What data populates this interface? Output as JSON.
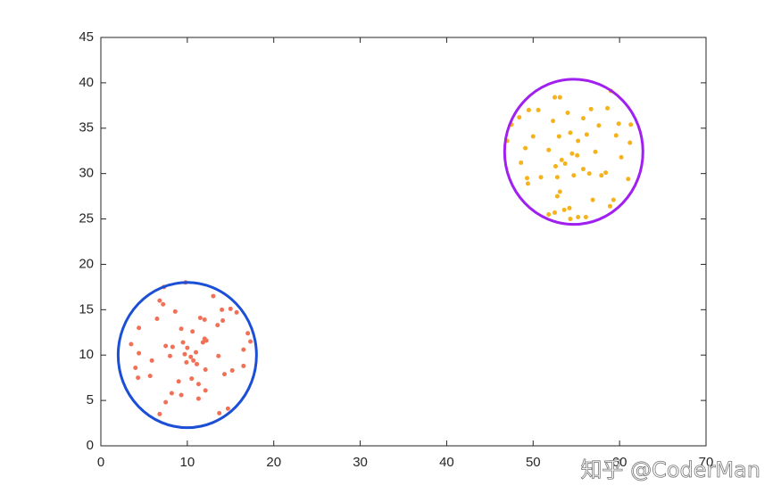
{
  "chart_data": {
    "type": "scatter",
    "annotation": "知乎 @CoderMan",
    "xlim": [
      0,
      70
    ],
    "xticks": [
      0,
      10,
      20,
      30,
      40,
      50,
      60,
      70
    ],
    "ylim": [
      0,
      45
    ],
    "yticks": [
      0,
      5,
      10,
      15,
      20,
      25,
      30,
      35,
      40,
      45
    ],
    "series": [
      {
        "color": "#f07158",
        "x": [
          9.8,
          7.3,
          13,
          6.8,
          7.2,
          14,
          15,
          15.7,
          8.6,
          6.5,
          11.5,
          12,
          14.1,
          13.5,
          4.4,
          9.3,
          10.6,
          17,
          12,
          11.8,
          12.2,
          3.5,
          7.5,
          8.3,
          9.5,
          10,
          16.5,
          17.3,
          4.4,
          9.7,
          10.4,
          11,
          8,
          5.9,
          13.6,
          12.1,
          4,
          15.2,
          16.5,
          4.3,
          5.7,
          14.3,
          11.3,
          9,
          12.1,
          8.2,
          9.3,
          11.3,
          7.5,
          14.7,
          13.7,
          6.8,
          10.5,
          9.9,
          11.1,
          10.7
        ],
        "y": [
          18,
          17.5,
          16.5,
          16,
          15.6,
          15,
          15.1,
          14.7,
          14.8,
          14,
          14.1,
          13.9,
          13.8,
          13.3,
          13,
          12.9,
          12.6,
          12.4,
          11.8,
          11.4,
          11.6,
          11.2,
          11,
          10.9,
          11.4,
          10.8,
          10.6,
          11.5,
          10.2,
          10.1,
          9.8,
          10.3,
          9.9,
          9.4,
          9.9,
          8.4,
          8.6,
          8.3,
          8.8,
          7.5,
          7.7,
          7.9,
          6.8,
          7.1,
          6.1,
          5.8,
          5.6,
          5.2,
          4.8,
          4.1,
          3.6,
          3.5,
          7.4,
          9.2,
          9.0,
          9.4
        ]
      },
      {
        "color": "#f5b21a",
        "x": [
          59,
          52.5,
          53.1,
          49.5,
          50.6,
          56.7,
          58.6,
          48.4,
          54,
          55.8,
          61.3,
          47.5,
          52.3,
          59.9,
          57.6,
          59.6,
          56.2,
          50,
          47,
          53,
          54.3,
          55.2,
          49.1,
          51.8,
          54.5,
          55.1,
          53.3,
          57.2,
          61.2,
          60.2,
          52.6,
          53.7,
          55.8,
          48.6,
          56.5,
          57.9,
          58.4,
          52.8,
          50.9,
          49.3,
          54.7,
          61,
          49.4,
          53.1,
          52.8,
          56.9,
          59.3,
          54.2,
          53.6,
          52.5,
          51.8,
          55.2,
          54.3,
          56.1,
          58.9
        ],
        "y": [
          39.1,
          38.4,
          38.4,
          37,
          37,
          37.1,
          37.2,
          36.2,
          36.7,
          36.1,
          35.4,
          35.4,
          35.8,
          35.5,
          35.3,
          34.2,
          34.3,
          34.1,
          33.6,
          34.1,
          34.5,
          33.6,
          32.8,
          32.6,
          32.2,
          32,
          31.5,
          32.4,
          33.4,
          31.8,
          30.8,
          31.1,
          30.5,
          31.2,
          30,
          29.8,
          30.1,
          29.6,
          29.6,
          29.5,
          29.8,
          29.4,
          28.9,
          28,
          27.5,
          27.1,
          27.1,
          26.2,
          26,
          25.7,
          25.5,
          25.2,
          25,
          25.2,
          26.4
        ]
      }
    ],
    "circles": [
      {
        "cx": 10,
        "cy": 10,
        "r": 8,
        "color": "#1a4fd6"
      },
      {
        "cx": 54.7,
        "cy": 32.4,
        "r": 8,
        "color": "#a020f0"
      }
    ]
  }
}
